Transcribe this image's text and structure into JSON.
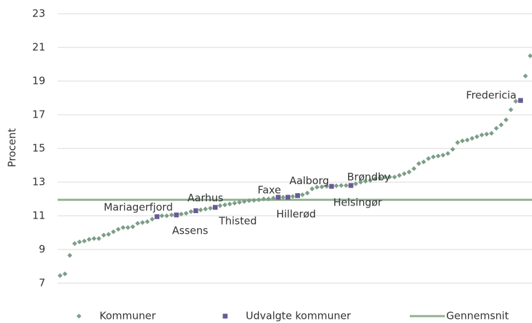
{
  "chart_data": {
    "type": "scatter",
    "y_label": "Procent",
    "categories": [
      null,
      null,
      null,
      null,
      null,
      null,
      null,
      null,
      null,
      null,
      null,
      null,
      null,
      null,
      null,
      null,
      null,
      null,
      null,
      null,
      null,
      null,
      null,
      null,
      null,
      null,
      null,
      null,
      null,
      null,
      null,
      null,
      null,
      null,
      null,
      null,
      null,
      null,
      null,
      null,
      null,
      null,
      null,
      null,
      null,
      null,
      null,
      null,
      null,
      null,
      null,
      null,
      null,
      null,
      null,
      null,
      null,
      null,
      null,
      null,
      null,
      null,
      null,
      null,
      null,
      null,
      null,
      null,
      null,
      null,
      null,
      null,
      null,
      null,
      null,
      null,
      null,
      null,
      null,
      null,
      null,
      null,
      null,
      null,
      null,
      null,
      null,
      null,
      null,
      null,
      null,
      null,
      null,
      null,
      null,
      null,
      null,
      null
    ],
    "series": [
      {
        "name": "Kommuner",
        "color": "#7d9e88",
        "marker": "diamond",
        "values": [
          7.45,
          7.55,
          8.65,
          9.35,
          9.45,
          9.5,
          9.6,
          9.65,
          9.65,
          9.85,
          9.9,
          10.05,
          10.2,
          10.3,
          10.3,
          10.35,
          10.55,
          10.6,
          10.65,
          10.8,
          null,
          11.0,
          11.0,
          11.05,
          null,
          11.1,
          11.15,
          11.25,
          null,
          11.35,
          11.4,
          11.45,
          null,
          11.6,
          11.65,
          11.7,
          11.75,
          11.8,
          11.85,
          11.9,
          11.92,
          11.95,
          12.0,
          12.0,
          12.05,
          null,
          12.1,
          null,
          12.15,
          null,
          12.25,
          12.35,
          12.6,
          12.7,
          12.72,
          12.75,
          null,
          12.78,
          12.8,
          12.8,
          null,
          12.9,
          13.0,
          13.05,
          13.1,
          13.2,
          13.25,
          13.3,
          13.3,
          13.3,
          13.4,
          13.5,
          13.6,
          13.8,
          14.1,
          14.2,
          14.4,
          14.5,
          14.55,
          14.6,
          14.7,
          14.95,
          15.35,
          15.45,
          15.5,
          15.6,
          15.7,
          15.8,
          15.85,
          15.9,
          16.2,
          16.4,
          16.7,
          17.3,
          17.8,
          null,
          19.3,
          20.5
        ]
      },
      {
        "name": "Udvalgte kommuner",
        "color": "#6a5a94",
        "marker": "square",
        "values": [
          null,
          null,
          null,
          null,
          null,
          null,
          null,
          null,
          null,
          null,
          null,
          null,
          null,
          null,
          null,
          null,
          null,
          null,
          null,
          null,
          10.95,
          null,
          null,
          null,
          11.05,
          null,
          null,
          null,
          11.3,
          null,
          null,
          null,
          11.5,
          null,
          null,
          null,
          null,
          null,
          null,
          null,
          null,
          null,
          null,
          null,
          null,
          12.1,
          null,
          12.1,
          null,
          12.2,
          null,
          null,
          null,
          null,
          null,
          null,
          12.75,
          null,
          null,
          null,
          12.8,
          null,
          null,
          null,
          null,
          null,
          null,
          null,
          null,
          null,
          null,
          null,
          null,
          null,
          null,
          null,
          null,
          null,
          null,
          null,
          null,
          null,
          null,
          null,
          null,
          null,
          null,
          null,
          null,
          null,
          null,
          null,
          null,
          null,
          null,
          17.85,
          null,
          null
        ],
        "point_labels": [
          null,
          null,
          null,
          null,
          null,
          null,
          null,
          null,
          null,
          null,
          null,
          null,
          null,
          null,
          null,
          null,
          null,
          null,
          null,
          null,
          "Mariagerfjord",
          null,
          null,
          null,
          "Assens",
          null,
          null,
          null,
          "Aarhus",
          null,
          null,
          null,
          "Thisted",
          null,
          null,
          null,
          null,
          null,
          null,
          null,
          null,
          null,
          null,
          null,
          null,
          "Faxe",
          null,
          "Hillerød",
          null,
          "Aalborg",
          null,
          null,
          null,
          null,
          null,
          null,
          "Helsingør",
          null,
          null,
          null,
          "Brøndby",
          null,
          null,
          null,
          null,
          null,
          null,
          null,
          null,
          null,
          null,
          null,
          null,
          null,
          null,
          null,
          null,
          null,
          null,
          null,
          null,
          null,
          null,
          null,
          null,
          null,
          null,
          null,
          null,
          null,
          null,
          null,
          null,
          null,
          null,
          "Fredericia",
          null,
          null
        ]
      }
    ],
    "average": {
      "name": "Gennemsnit",
      "value": 11.95,
      "color": "#8fb08f"
    },
    "ylim": [
      7,
      23
    ],
    "yticks": [
      7,
      9,
      11,
      13,
      15,
      17,
      19,
      21,
      23
    ],
    "grid": true,
    "legend": "bottom"
  }
}
